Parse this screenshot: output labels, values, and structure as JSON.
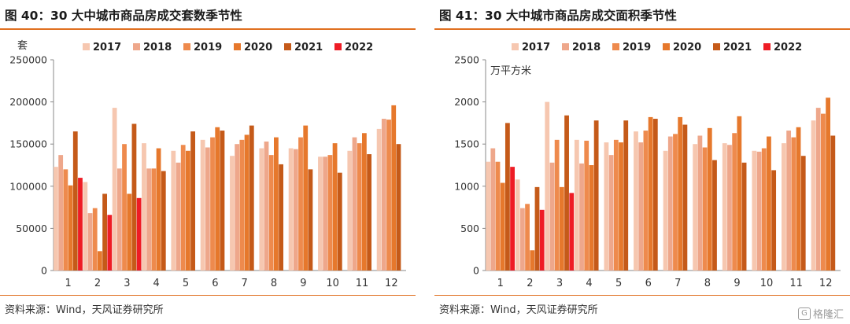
{
  "colors": {
    "accent": "#e06f1f",
    "series": [
      "#f6c7b0",
      "#eea78b",
      "#ee8a4d",
      "#e6782c",
      "#c55a19",
      "#ee1c25"
    ]
  },
  "panels": [
    {
      "title": "图 40：30 大中城市商品房成交套数季节性",
      "source": "资料来源：Wind，天风证券研究所"
    },
    {
      "title": "图 41：30 大中城市商品房成交面积季节性",
      "source": "资料来源：Wind，天风证券研究所"
    }
  ],
  "watermark": {
    "text": "格隆汇",
    "logo": "G"
  },
  "chart_data": [
    {
      "type": "bar",
      "title": "30 大中城市商品房成交套数季节性",
      "ylabel": "套",
      "ylim": [
        0,
        250000
      ],
      "yticks": [
        0,
        50000,
        100000,
        150000,
        200000,
        250000
      ],
      "categories": [
        "1",
        "2",
        "3",
        "4",
        "5",
        "6",
        "7",
        "8",
        "9",
        "10",
        "11",
        "12"
      ],
      "legend_position": "top",
      "series": [
        {
          "name": "2017",
          "values": [
            123000,
            105000,
            193000,
            151000,
            142000,
            155000,
            136000,
            145000,
            145000,
            135000,
            142000,
            168000
          ]
        },
        {
          "name": "2018",
          "values": [
            137000,
            68000,
            121000,
            121000,
            128000,
            146000,
            150000,
            153000,
            144000,
            135000,
            158000,
            180000
          ]
        },
        {
          "name": "2019",
          "values": [
            120000,
            74000,
            150000,
            121000,
            149000,
            158000,
            155000,
            137000,
            158000,
            137000,
            151000,
            179000
          ]
        },
        {
          "name": "2020",
          "values": [
            101000,
            23000,
            91000,
            145000,
            142000,
            170000,
            161000,
            158000,
            172000,
            151000,
            163000,
            196000
          ]
        },
        {
          "name": "2021",
          "values": [
            165000,
            91000,
            174000,
            118000,
            165000,
            166000,
            172000,
            126000,
            120000,
            116000,
            138000,
            150000
          ]
        },
        {
          "name": "2022",
          "values": [
            110000,
            66000,
            86000,
            null,
            null,
            null,
            null,
            null,
            null,
            null,
            null,
            null
          ]
        }
      ]
    },
    {
      "type": "bar",
      "title": "30 大中城市商品房成交面积季节性",
      "ylabel": "万平方米",
      "ylim": [
        0,
        2500
      ],
      "yticks": [
        0,
        500,
        1000,
        1500,
        2000,
        2500
      ],
      "categories": [
        "1",
        "2",
        "3",
        "4",
        "5",
        "6",
        "7",
        "8",
        "9",
        "10",
        "11",
        "12"
      ],
      "legend_position": "top",
      "series": [
        {
          "name": "2017",
          "values": [
            1290,
            1080,
            2000,
            1550,
            1520,
            1650,
            1420,
            1500,
            1510,
            1420,
            1510,
            1780
          ]
        },
        {
          "name": "2018",
          "values": [
            1450,
            740,
            1280,
            1270,
            1370,
            1520,
            1590,
            1600,
            1490,
            1410,
            1660,
            1930
          ]
        },
        {
          "name": "2019",
          "values": [
            1290,
            790,
            1550,
            1540,
            1550,
            1660,
            1620,
            1460,
            1630,
            1450,
            1580,
            1860
          ]
        },
        {
          "name": "2020",
          "values": [
            1040,
            240,
            990,
            1250,
            1520,
            1820,
            1820,
            1690,
            1830,
            1590,
            1700,
            2050
          ]
        },
        {
          "name": "2021",
          "values": [
            1750,
            990,
            1840,
            1780,
            1780,
            1800,
            1730,
            1310,
            1280,
            1190,
            1360,
            1600
          ]
        },
        {
          "name": "2022",
          "values": [
            1230,
            720,
            920,
            null,
            null,
            null,
            null,
            null,
            null,
            null,
            null,
            null
          ]
        }
      ]
    }
  ]
}
